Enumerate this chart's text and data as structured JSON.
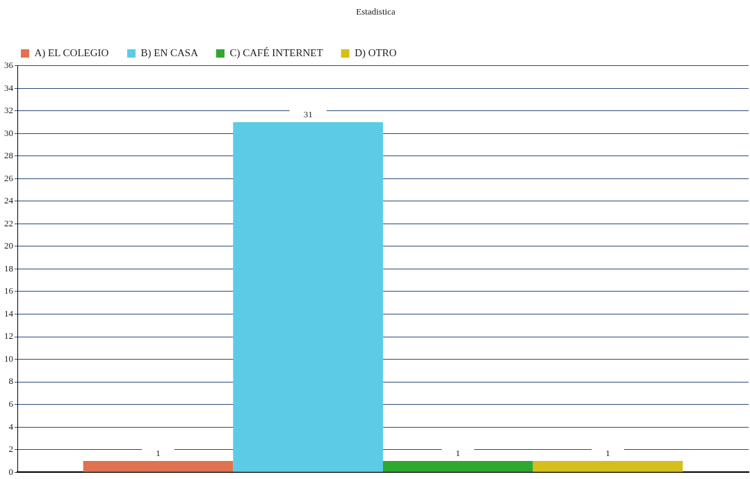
{
  "chart_data": {
    "type": "bar",
    "title": "Estadistica",
    "categories": [
      null
    ],
    "series": [
      {
        "name": "A) EL COLEGIO",
        "color": "#e0734f",
        "values": [
          1
        ]
      },
      {
        "name": "B) EN CASA",
        "color": "#5ccbe6",
        "values": [
          31
        ]
      },
      {
        "name": "C) CAFÉ INTERNET",
        "color": "#2fa82f",
        "values": [
          1
        ]
      },
      {
        "name": "D) OTRO",
        "color": "#d6be1c",
        "values": [
          1
        ]
      }
    ],
    "ylim": [
      0,
      36
    ],
    "yticks": [
      0,
      2,
      4,
      6,
      8,
      10,
      12,
      14,
      16,
      18,
      20,
      22,
      24,
      26,
      28,
      30,
      32,
      34,
      36
    ],
    "grid": "y",
    "legend": "top left",
    "data_labels": true
  }
}
